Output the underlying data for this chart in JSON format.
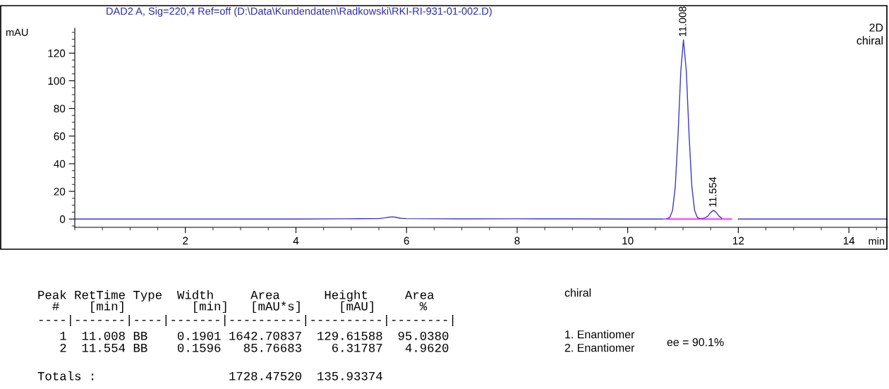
{
  "chart_data": {
    "type": "line",
    "title": "DAD2 A, Sig=220,4 Ref=off (D:\\Data\\Kundendaten\\Radkowski\\RKI-RI-931-01-002.D)",
    "xlabel": "min",
    "ylabel": "mAU",
    "xlim": [
      0,
      14.7
    ],
    "ylim": [
      -6,
      138
    ],
    "xticks": [
      2,
      4,
      6,
      8,
      10,
      12,
      14
    ],
    "yticks": [
      0,
      20,
      40,
      60,
      80,
      100,
      120
    ],
    "grid": false,
    "legend": false,
    "marker": "none",
    "line_style": "solid",
    "series": [
      {
        "color": "#3a3acf",
        "x": [
          0,
          1,
          2,
          3,
          4,
          4.9,
          5.5,
          5.6,
          5.7,
          5.75,
          5.8,
          5.9,
          6.0,
          6.5,
          7,
          8,
          9,
          10,
          10.6,
          10.7,
          10.76,
          10.81,
          10.86,
          10.91,
          10.96,
          11.008,
          11.06,
          11.11,
          11.16,
          11.21,
          11.26,
          11.31,
          11.38,
          11.45,
          11.5,
          11.554,
          11.6,
          11.65,
          11.7,
          11.8,
          12,
          13,
          14,
          14.7
        ],
        "values": [
          0,
          0,
          0,
          0,
          0,
          0.2,
          0.3,
          0.8,
          1.4,
          1.6,
          1.3,
          0.5,
          0.3,
          0.2,
          0.1,
          0.2,
          0.1,
          0,
          0,
          0.2,
          1.1,
          6.1,
          23.4,
          60.5,
          107,
          129.6,
          107,
          60.5,
          23.4,
          6.1,
          1.1,
          0.3,
          0.5,
          2.1,
          4.8,
          6.3,
          4.8,
          2.1,
          0.6,
          null,
          0,
          0,
          0,
          0
        ]
      },
      {
        "color": "#ff00ff",
        "x": [
          10.7,
          11.38,
          11.88
        ],
        "values": [
          0,
          0,
          0
        ]
      }
    ],
    "annotations": [
      {
        "text": "11.008",
        "x": 11.008,
        "y": 129.6
      },
      {
        "text": "11.554",
        "x": 11.554,
        "y": 6.3
      },
      "2D\nchiral",
      "Peak RetTime Type  Width     Area      Height     Area",
      "  #    [min]         [min]   [mAU*s]     [mAU]      %",
      "----|-------|----|-------|----------|----------|--------|",
      "   1  11.008 BB    0.1901 1642.70837  129.61588  95.0380",
      "   2  11.554 BB    0.1596   85.76683    6.31787   4.9620",
      "Totals :                  1728.47520  135.93374",
      "chiral",
      "1. Enantiomer",
      "2. Enantiomer",
      "ee = 90.1%"
    ]
  }
}
